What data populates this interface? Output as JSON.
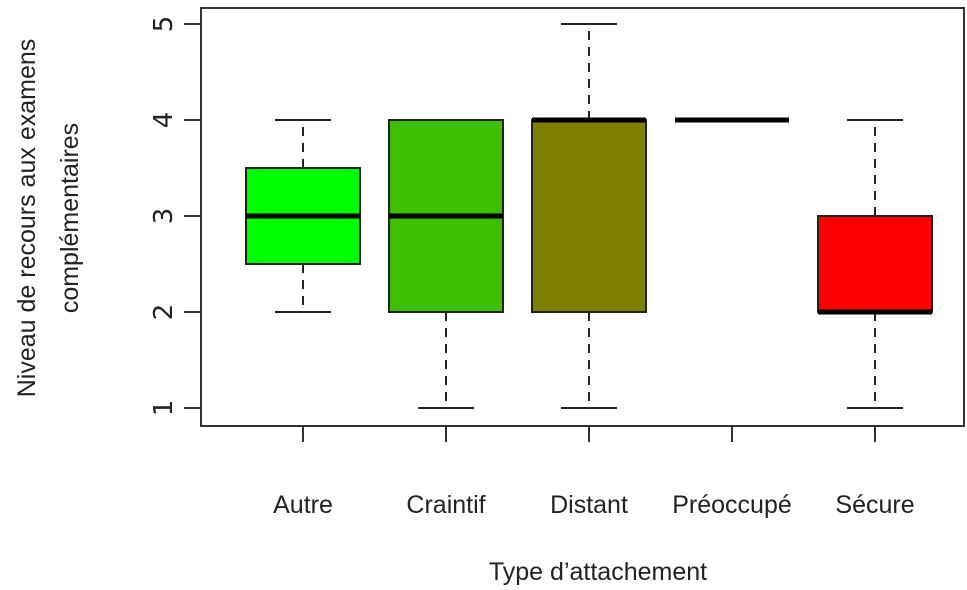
{
  "chart_data": {
    "type": "box",
    "xlabel": "Type d’attachement",
    "ylabel_lines": [
      "Niveau de recours aux examens",
      "complémentaires"
    ],
    "ylim": [
      1,
      5
    ],
    "yticks": [
      "1",
      "2",
      "3",
      "4",
      "5"
    ],
    "categories": [
      "Autre",
      "Craintif",
      "Distant",
      "Préoccupé",
      "Sécure"
    ],
    "boxes": [
      {
        "category": "Autre",
        "whisker_low": 2,
        "q1": 2.5,
        "median": 3,
        "q3": 3.5,
        "whisker_high": 4,
        "color": "#00ff00"
      },
      {
        "category": "Craintif",
        "whisker_low": 1,
        "q1": 2,
        "median": 3,
        "q3": 4,
        "whisker_high": 4,
        "color": "#3cbf00"
      },
      {
        "category": "Distant",
        "whisker_low": 1,
        "q1": 2,
        "median": 4,
        "q3": 4,
        "whisker_high": 5,
        "color": "#7f7f00"
      },
      {
        "category": "Préoccupé",
        "whisker_low": 4,
        "q1": 4,
        "median": 4,
        "q3": 4,
        "whisker_high": 4,
        "color": "#bf3f00"
      },
      {
        "category": "Sécure",
        "whisker_low": 1,
        "q1": 2,
        "median": 2,
        "q3": 3,
        "whisker_high": 4,
        "color": "#ff0000"
      }
    ],
    "grid": false,
    "legend": "none"
  }
}
